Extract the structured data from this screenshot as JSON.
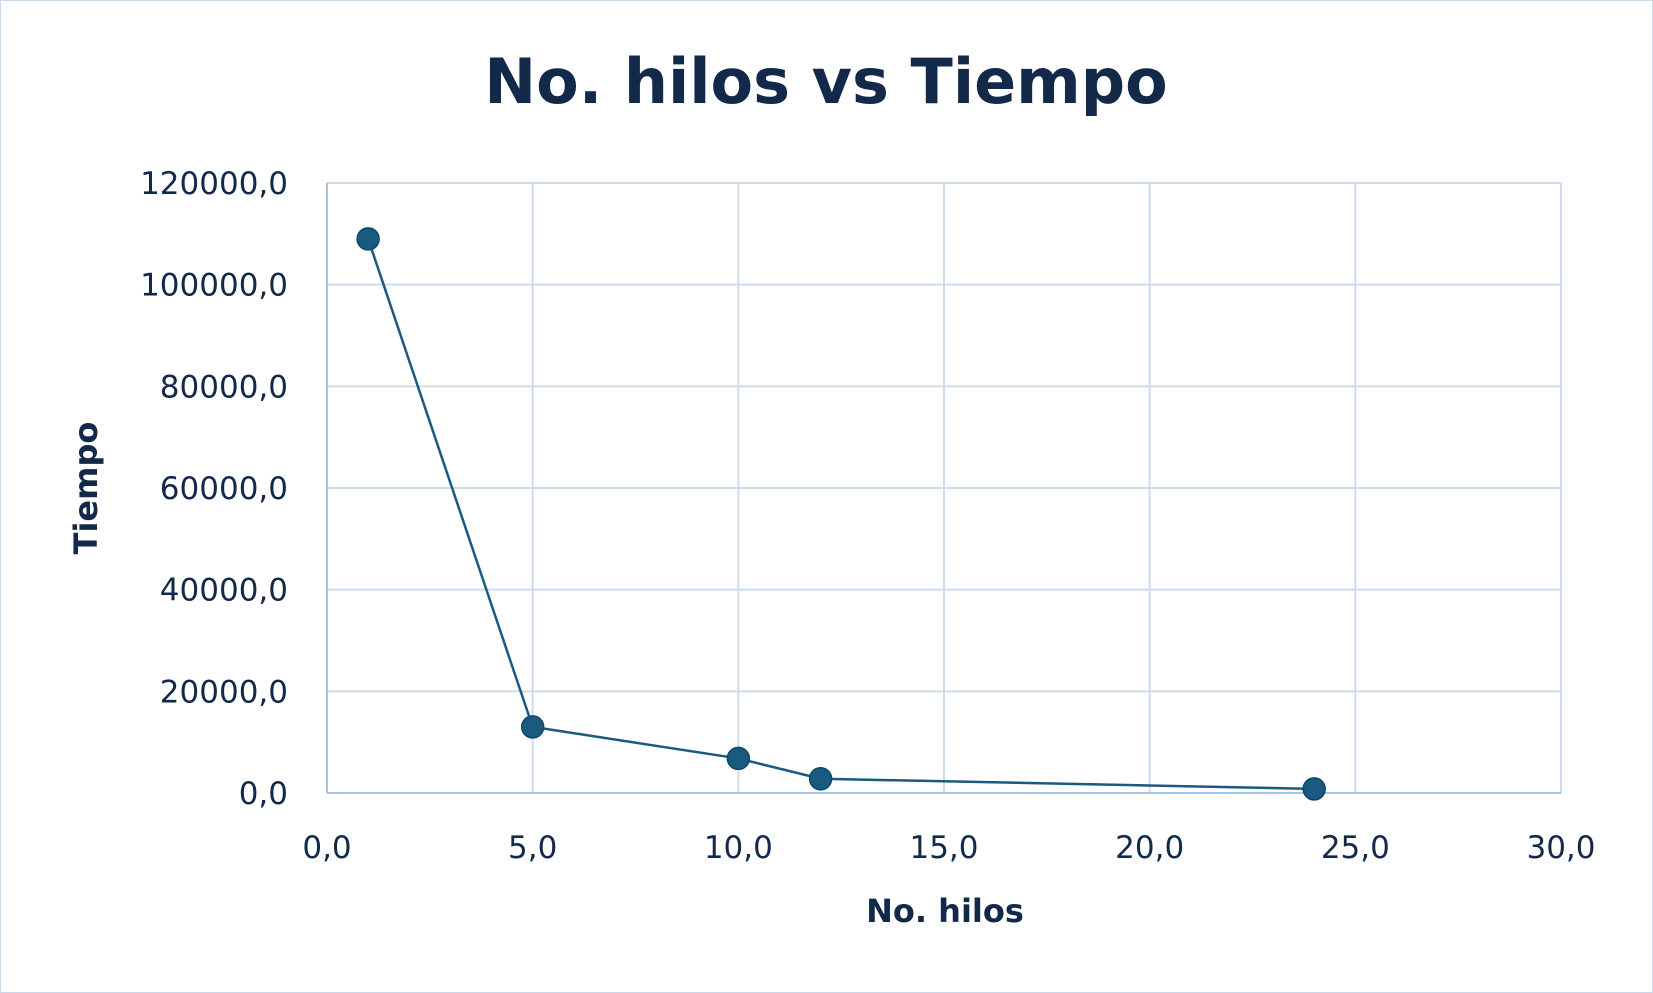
{
  "chart_data": {
    "type": "scatter",
    "title": "No. hilos vs Tiempo",
    "xlabel": "No. hilos",
    "ylabel": "Tiempo",
    "xlim": [
      0,
      30
    ],
    "ylim": [
      0,
      120000
    ],
    "x_ticks": [
      "0,0",
      "5,0",
      "10,0",
      "15,0",
      "20,0",
      "25,0",
      "30,0"
    ],
    "y_ticks": [
      "0,0",
      "20000,0",
      "40000,0",
      "60000,0",
      "80000,0",
      "100000,0",
      "120000,0"
    ],
    "grid": true,
    "legend": "none",
    "series": [
      {
        "color": "#1b5a80",
        "marker": "circle",
        "line": true,
        "points": [
          {
            "x": 1,
            "y": 109000
          },
          {
            "x": 5,
            "y": 13000
          },
          {
            "x": 10,
            "y": 6800
          },
          {
            "x": 12,
            "y": 2800
          },
          {
            "x": 24,
            "y": 800
          }
        ]
      }
    ]
  }
}
